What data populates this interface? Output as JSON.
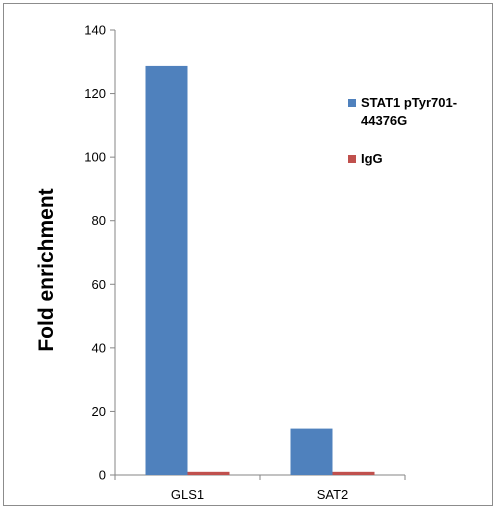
{
  "chart_data": {
    "type": "bar",
    "categories": [
      "GLS1",
      "SAT2"
    ],
    "series": [
      {
        "name": "STAT1 pTyr701-44376G",
        "values": [
          128.7,
          14.6
        ],
        "color": "#4f81bd"
      },
      {
        "name": "IgG",
        "values": [
          1.0,
          1.0
        ],
        "color": "#c0504d"
      }
    ],
    "title": "",
    "xlabel": "",
    "ylabel": "Fold enrichment",
    "ylim": [
      0,
      140
    ],
    "yticks": [
      0,
      20,
      40,
      60,
      80,
      100,
      120,
      140
    ],
    "grid": false,
    "legend": "right",
    "legend_labels": [
      [
        "STAT1 pTyr701-",
        "44376G"
      ],
      [
        "IgG"
      ]
    ]
  }
}
